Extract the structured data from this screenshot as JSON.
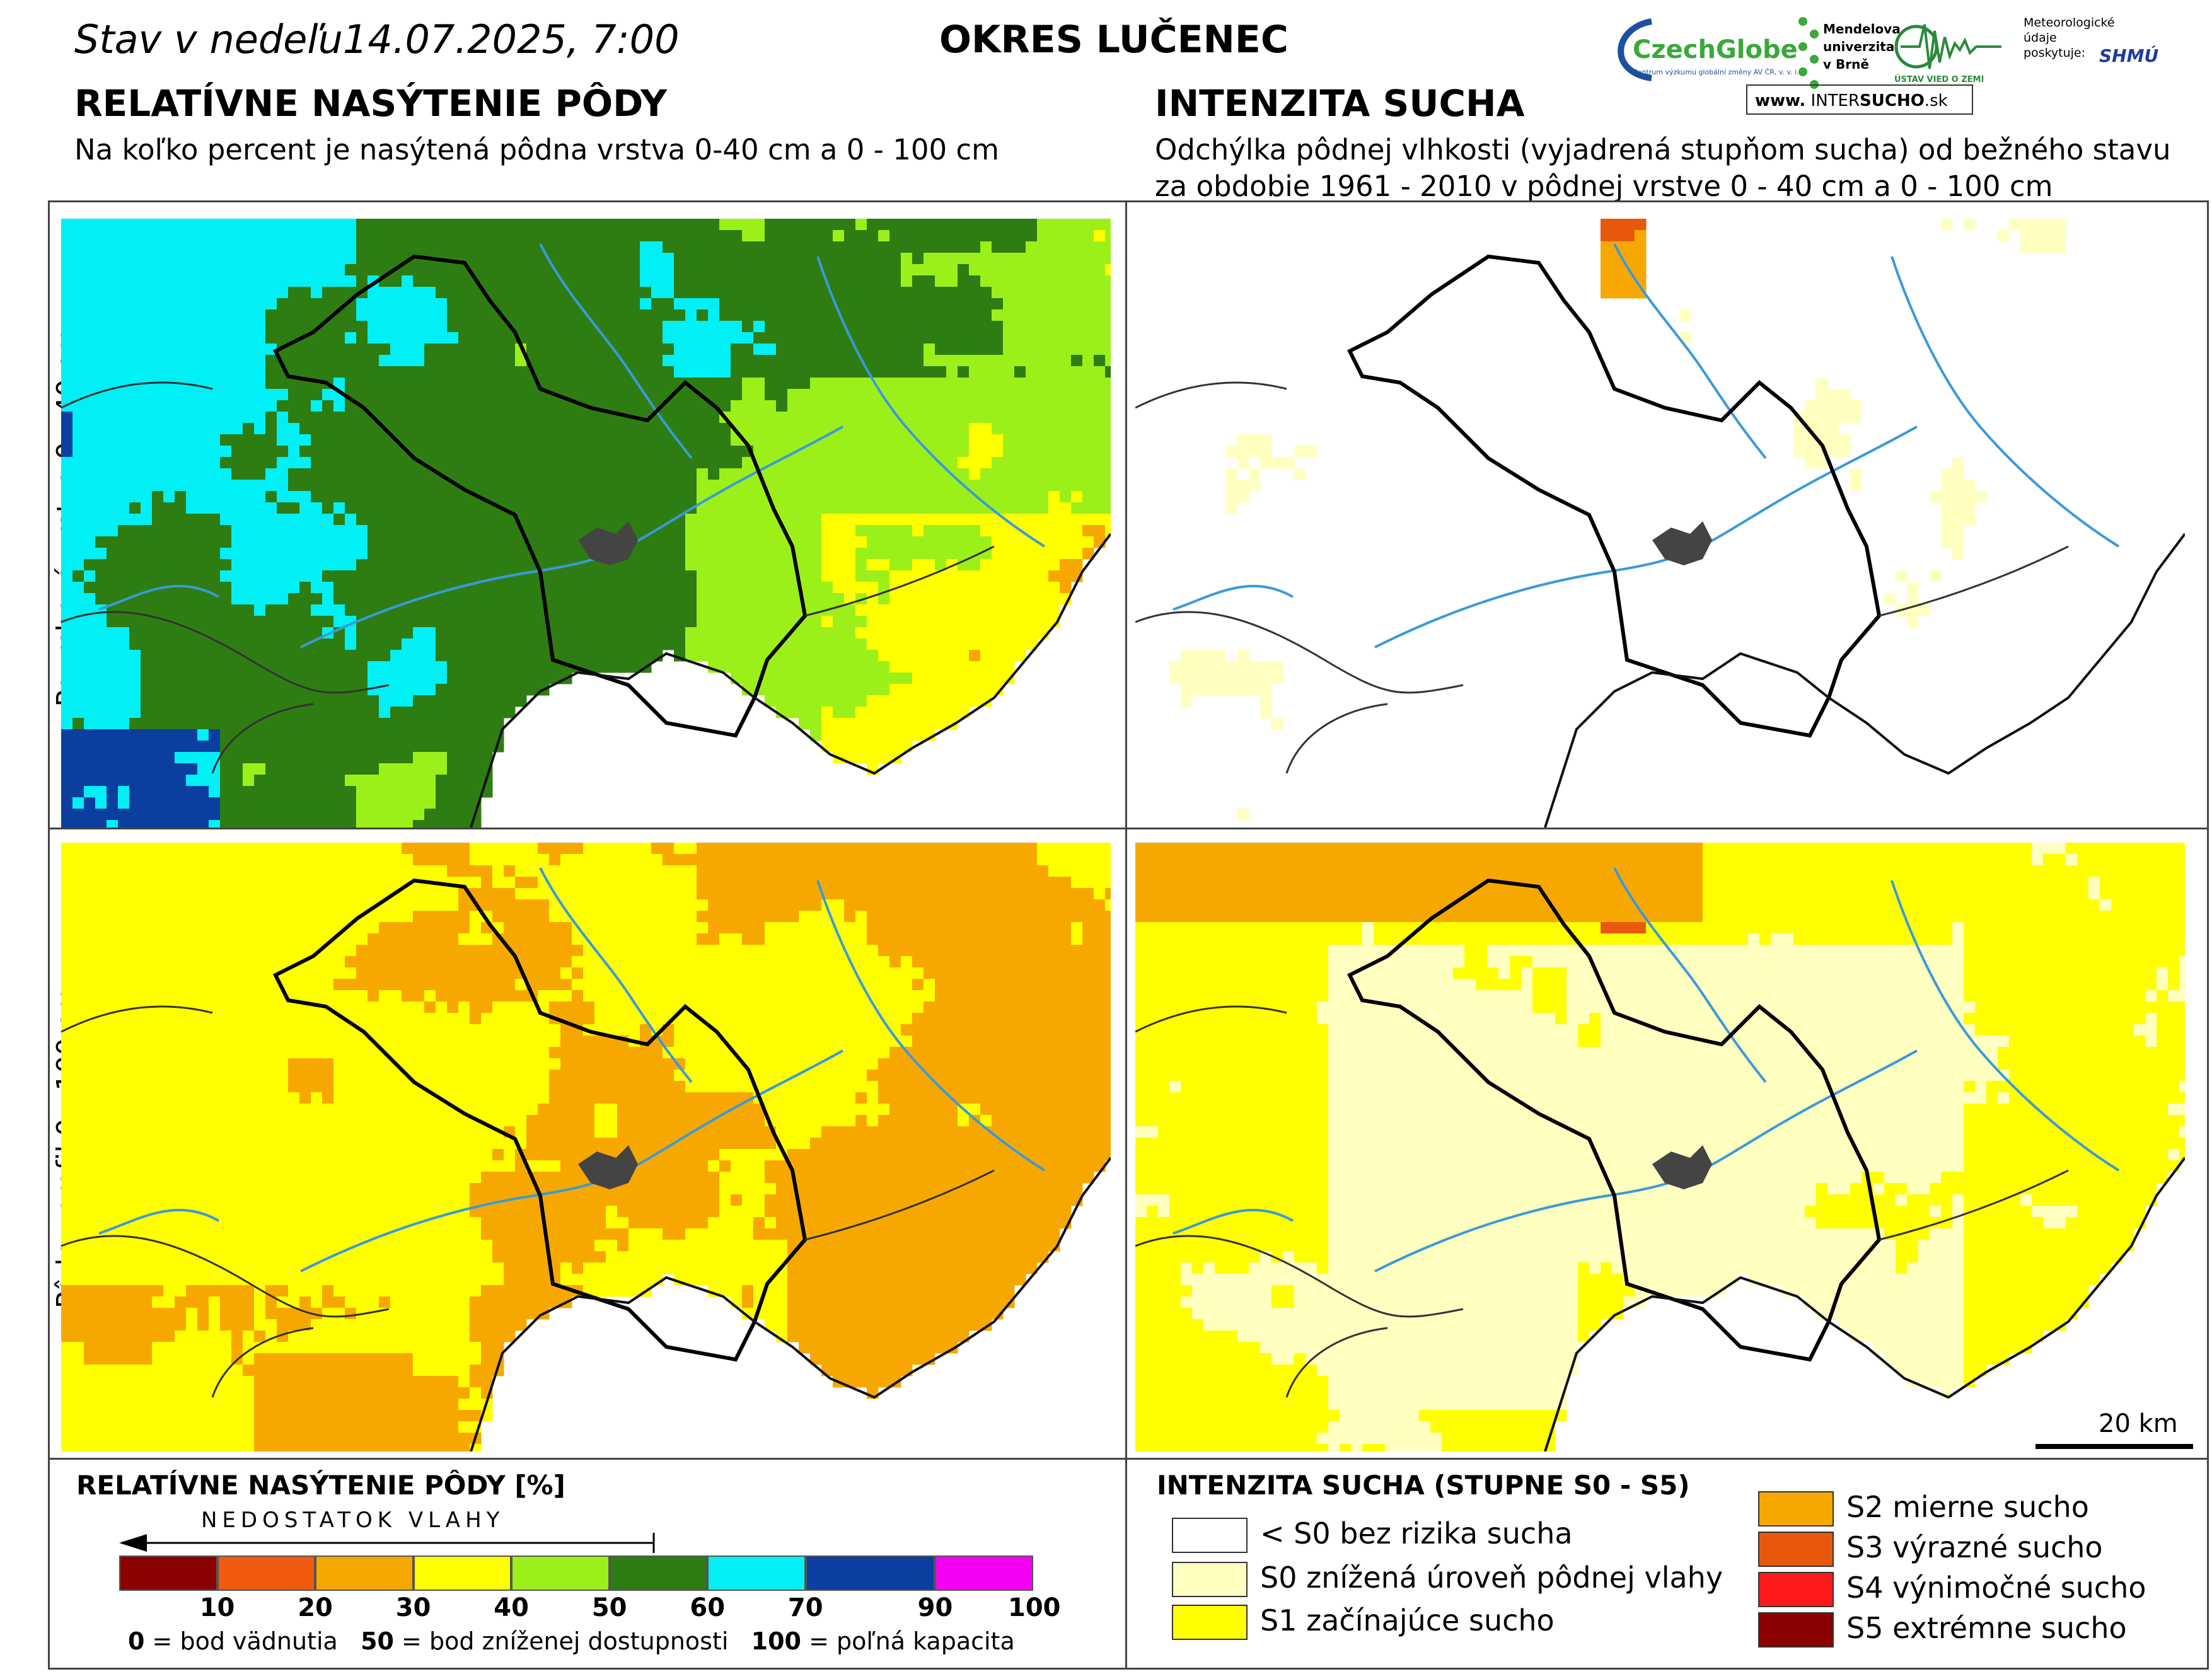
{
  "header": {
    "date_prefix": "Stav v nedeľu",
    "date_value": "14.07.2025, 7:00",
    "okres": "OKRES  LUČENEC"
  },
  "left_section": {
    "title": "RELATÍVNE NASÝTENIE PÔDY",
    "subtitle": "Na koľko percent je nasýtená pôdna vrstva 0-40 cm a 0 - 100 cm"
  },
  "right_section": {
    "title": "INTENZITA SUCHA",
    "subtitle_line1": "Odchýlka pôdnej vlhkosti (vyjadrená stupňom sucha) od bežného stavu",
    "subtitle_line2": "za obdobie 1961 - 2010 v pôdnej vrstve 0 - 40 cm a 0 - 100 cm"
  },
  "logos": {
    "czechglobe": "CzechGlobe",
    "czechglobe_sub": "Centrum výzkumu globální změny AV ČR, v. v. i.",
    "mendel_line1": "Mendelova",
    "mendel_line2": "univerzita",
    "mendel_line3": "v Brně",
    "uvz": "ÚSTAV VIED O ZEMI",
    "meteo_line1": "Meteorologické",
    "meteo_line2": "údaje",
    "meteo_line3": "poskytuje:",
    "shmu": "SHMÚ",
    "intersucho_prefix": "www.",
    "intersucho_mid": "INTER",
    "intersucho_bold": "SUCHO",
    "intersucho_suffix": ".sk"
  },
  "rows": {
    "top": "Povrchová vrstva 0 - 40 cm",
    "bottom": "Pôdny profil 0 - 100 cm"
  },
  "scale_bar": "20 km",
  "legend_left": {
    "title": "RELATÍVNE NASÝTENIE PÔDY [%]",
    "arrow_label": "NEDOSTATOK VLAHY",
    "colors": [
      "#8b0000",
      "#f15a0f",
      "#f7a800",
      "#ffff00",
      "#9cf01a",
      "#2e7d12",
      "#00f0f5",
      "#0a3fa0",
      "#f500f5"
    ],
    "ticks": [
      "10",
      "20",
      "30",
      "40",
      "50",
      "60",
      "70",
      "90",
      "100"
    ],
    "note_0_bold": "0",
    "note_0": " = bod vädnutia",
    "note_50_bold": "50",
    "note_50": " = bod zníženej dostupnosti",
    "note_100_bold": "100",
    "note_100": " = poľná kapacita"
  },
  "legend_right": {
    "title": "INTENZITA SUCHA (STUPNE S0 - S5)",
    "items": [
      {
        "label": "< S0 bez rizika sucha",
        "color": "#ffffff"
      },
      {
        "label": "S0 znížená úroveň pôdnej vlahy",
        "color": "#ffffc0"
      },
      {
        "label": "S1 začínajúce sucho",
        "color": "#ffff00"
      },
      {
        "label": "S2 mierne sucho",
        "color": "#f7a800"
      },
      {
        "label": "S3 výrazné sucho",
        "color": "#e8580c"
      },
      {
        "label": "S4 výnimočné sucho",
        "color": "#ff1a1a"
      },
      {
        "label": "S5 extrémne sucho",
        "color": "#8b0000"
      }
    ]
  }
}
